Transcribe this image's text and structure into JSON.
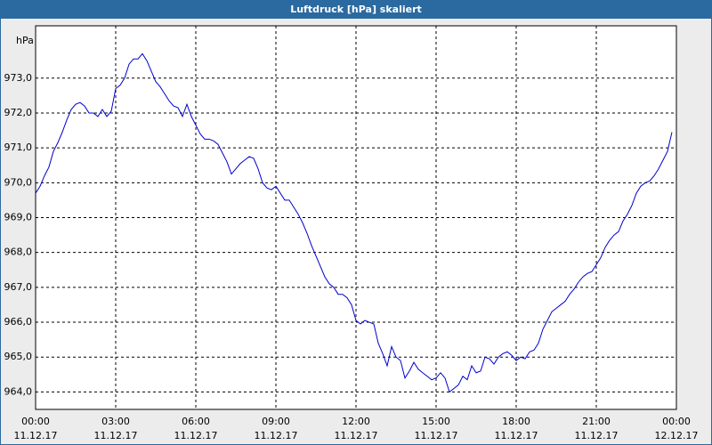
{
  "chart_data": {
    "type": "line",
    "title": "Luftdruck [hPa] skaliert",
    "y_unit": "hPa",
    "xlim": [
      0,
      1440
    ],
    "ylim": [
      963.5,
      974.5
    ],
    "grid": true,
    "xticks": [
      {
        "value": 0,
        "label": "00:00",
        "date": "11.12.17"
      },
      {
        "value": 180,
        "label": "03:00",
        "date": "11.12.17"
      },
      {
        "value": 360,
        "label": "06:00",
        "date": "11.12.17"
      },
      {
        "value": 540,
        "label": "09:00",
        "date": "11.12.17"
      },
      {
        "value": 720,
        "label": "12:00",
        "date": "11.12.17"
      },
      {
        "value": 900,
        "label": "15:00",
        "date": "11.12.17"
      },
      {
        "value": 1080,
        "label": "18:00",
        "date": "11.12.17"
      },
      {
        "value": 1260,
        "label": "21:00",
        "date": "11.12.17"
      },
      {
        "value": 1440,
        "label": "00:00",
        "date": "12.12.17"
      }
    ],
    "yticks": [
      {
        "value": 964,
        "label": "964,0"
      },
      {
        "value": 965,
        "label": "965,0"
      },
      {
        "value": 966,
        "label": "966,0"
      },
      {
        "value": 967,
        "label": "967,0"
      },
      {
        "value": 968,
        "label": "968,0"
      },
      {
        "value": 969,
        "label": "969,0"
      },
      {
        "value": 970,
        "label": "970,0"
      },
      {
        "value": 971,
        "label": "971,0"
      },
      {
        "value": 972,
        "label": "972,0"
      },
      {
        "value": 973,
        "label": "973,0"
      }
    ],
    "x": [
      0,
      10,
      20,
      30,
      40,
      50,
      60,
      70,
      80,
      90,
      100,
      110,
      120,
      130,
      140,
      150,
      160,
      170,
      180,
      190,
      200,
      210,
      220,
      230,
      240,
      250,
      260,
      270,
      280,
      290,
      300,
      310,
      320,
      330,
      340,
      350,
      360,
      370,
      380,
      390,
      400,
      410,
      420,
      430,
      440,
      450,
      460,
      470,
      480,
      490,
      500,
      510,
      520,
      530,
      540,
      550,
      560,
      570,
      580,
      590,
      600,
      610,
      620,
      630,
      640,
      650,
      660,
      670,
      680,
      690,
      700,
      710,
      720,
      730,
      740,
      750,
      760,
      770,
      780,
      790,
      800,
      810,
      820,
      830,
      840,
      850,
      860,
      870,
      880,
      890,
      900,
      910,
      920,
      930,
      940,
      950,
      960,
      970,
      980,
      990,
      1000,
      1010,
      1020,
      1030,
      1040,
      1050,
      1060,
      1070,
      1080,
      1090,
      1100,
      1110,
      1120,
      1130,
      1140,
      1150,
      1160,
      1170,
      1180,
      1190,
      1200,
      1210,
      1220,
      1230,
      1240,
      1250,
      1260,
      1270,
      1280,
      1290,
      1300,
      1310,
      1320,
      1330,
      1340,
      1350,
      1360,
      1370,
      1380,
      1390,
      1400,
      1410,
      1420,
      1430
    ],
    "series": [
      {
        "name": "Luftdruck",
        "color": "#0000cc",
        "values": [
          969.7,
          969.9,
          970.2,
          970.45,
          970.9,
          971.15,
          971.45,
          971.8,
          972.1,
          972.25,
          972.3,
          972.2,
          972.0,
          972.0,
          971.9,
          972.1,
          971.9,
          972.05,
          972.7,
          972.8,
          973.0,
          973.4,
          973.55,
          973.55,
          973.7,
          973.5,
          973.2,
          972.9,
          972.75,
          972.55,
          972.35,
          972.2,
          972.15,
          971.9,
          972.25,
          971.9,
          971.65,
          971.4,
          971.25,
          971.25,
          971.2,
          971.1,
          970.85,
          970.6,
          970.25,
          970.4,
          970.55,
          970.65,
          970.75,
          970.7,
          970.4,
          970.0,
          969.85,
          969.8,
          969.9,
          969.7,
          969.5,
          969.5,
          969.3,
          969.1,
          968.85,
          968.55,
          968.2,
          967.9,
          967.6,
          967.3,
          967.1,
          967.0,
          966.8,
          966.8,
          966.7,
          966.5,
          966.05,
          965.95,
          966.05,
          966.0,
          965.95,
          965.4,
          965.1,
          964.75,
          965.3,
          965.0,
          964.9,
          964.4,
          964.6,
          964.85,
          964.65,
          964.55,
          964.45,
          964.35,
          964.4,
          964.55,
          964.4,
          964.0,
          964.1,
          964.2,
          964.45,
          964.35,
          964.75,
          964.55,
          964.6,
          965.0,
          964.95,
          964.8,
          965.0,
          965.1,
          965.15,
          965.05,
          964.9,
          965.0,
          964.95,
          965.15,
          965.2,
          965.4,
          965.8,
          966.05,
          966.3,
          966.4,
          966.5,
          966.6,
          966.8,
          966.95,
          967.15,
          967.3,
          967.4,
          967.45,
          967.65,
          967.85,
          968.15,
          968.35,
          968.5,
          968.6,
          968.9,
          969.1,
          969.35,
          969.7,
          969.9,
          970.0,
          970.05,
          970.2,
          970.4,
          970.65,
          970.9,
          971.45
        ]
      }
    ]
  }
}
